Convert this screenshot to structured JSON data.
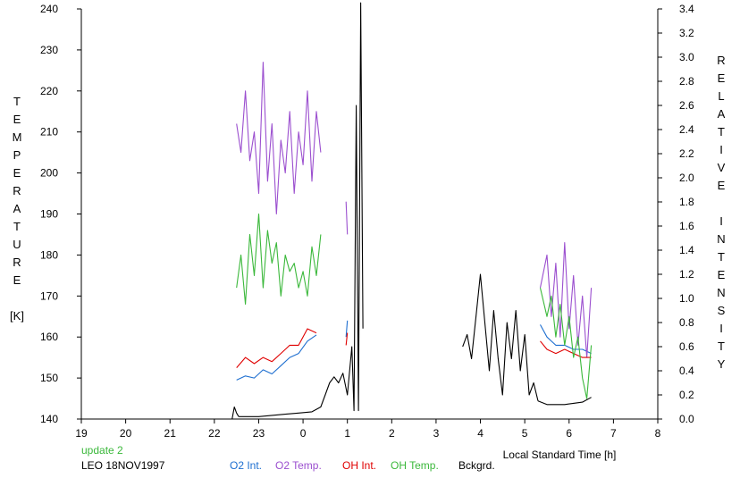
{
  "chart_data": {
    "type": "line",
    "left_axis_label": "TEMPERATURE",
    "left_axis_unit": "[K]",
    "right_axis_label": "RELATIVE INTENSITY",
    "x_axis_title": "Local Standard Time [h]",
    "x_ticks": [
      "19",
      "20",
      "21",
      "22",
      "23",
      "0",
      "1",
      "2",
      "3",
      "4",
      "5",
      "6",
      "7",
      "8"
    ],
    "y_left_ticks": [
      140,
      150,
      160,
      170,
      180,
      190,
      200,
      210,
      220,
      230,
      240
    ],
    "y_right_ticks": [
      "0.0",
      "0.2",
      "0.4",
      "0.6",
      "0.8",
      "1.0",
      "1.2",
      "1.4",
      "1.6",
      "1.8",
      "2.0",
      "2.2",
      "2.4",
      "2.6",
      "2.8",
      "3.0",
      "3.2",
      "3.4"
    ],
    "xlim": [
      19,
      32
    ],
    "ylim_left": [
      140,
      240
    ],
    "ylim_right": [
      0,
      3.4
    ],
    "grid": false,
    "series": [
      {
        "name": "O2 Int.",
        "axis": "left",
        "color": "#1e6fd0",
        "segments": [
          {
            "x": [
              22.5,
              22.7,
              22.9,
              23.1,
              23.3,
              23.5,
              23.7,
              23.9,
              24.1,
              24.3
            ],
            "y": [
              149.5,
              150.5,
              150,
              152,
              151,
              153,
              155,
              156,
              159,
              160.5
            ]
          },
          {
            "x": [
              24.97,
              25.0
            ],
            "y": [
              160,
              164
            ]
          },
          {
            "x": [
              29.35,
              29.5,
              29.7,
              29.9,
              30.1,
              30.3,
              30.5
            ],
            "y": [
              163,
              160,
              158,
              158,
              157,
              157,
              156
            ]
          }
        ]
      },
      {
        "name": "O2 Temp.",
        "axis": "left",
        "color": "#9b4fcf",
        "segments": [
          {
            "x": [
              22.5,
              22.6,
              22.7,
              22.8,
              22.9,
              23.0,
              23.1,
              23.2,
              23.3,
              23.4,
              23.5,
              23.6,
              23.7,
              23.8,
              23.9,
              24.0,
              24.1,
              24.2,
              24.3,
              24.4
            ],
            "y": [
              212,
              205,
              220,
              203,
              210,
              195,
              227,
              198,
              212,
              190,
              208,
              200,
              215,
              195,
              210,
              202,
              220,
              198,
              215,
              205
            ]
          },
          {
            "x": [
              24.97,
              25.0
            ],
            "y": [
              193,
              185
            ]
          },
          {
            "x": [
              29.35,
              29.5,
              29.6,
              29.7,
              29.8,
              29.9,
              30.0,
              30.1,
              30.2,
              30.3,
              30.4,
              30.5
            ],
            "y": [
              172,
              180,
              165,
              178,
              160,
              183,
              162,
              175,
              158,
              170,
              155,
              172
            ]
          }
        ]
      },
      {
        "name": "OH Int.",
        "axis": "left",
        "color": "#e00000",
        "segments": [
          {
            "x": [
              22.5,
              22.7,
              22.9,
              23.1,
              23.3,
              23.5,
              23.7,
              23.9,
              24.1,
              24.3
            ],
            "y": [
              152.5,
              155,
              153.5,
              155,
              154,
              156,
              158,
              158,
              162,
              161
            ]
          },
          {
            "x": [
              24.97,
              25.0
            ],
            "y": [
              158,
              161
            ]
          },
          {
            "x": [
              29.35,
              29.5,
              29.7,
              29.9,
              30.1,
              30.3,
              30.5
            ],
            "y": [
              159,
              157,
              156,
              157,
              156,
              155,
              155
            ]
          }
        ]
      },
      {
        "name": "OH Temp.",
        "axis": "left",
        "color": "#3bb83b",
        "segments": [
          {
            "x": [
              22.5,
              22.6,
              22.7,
              22.8,
              22.9,
              23.0,
              23.1,
              23.2,
              23.3,
              23.4,
              23.5,
              23.6,
              23.7,
              23.8,
              23.9,
              24.0,
              24.1,
              24.2,
              24.3,
              24.4
            ],
            "y": [
              172,
              180,
              168,
              185,
              175,
              190,
              172,
              186,
              178,
              183,
              170,
              180,
              176,
              178,
              172,
              176,
              170,
              182,
              175,
              185
            ]
          },
          {
            "x": [
              29.35,
              29.5,
              29.6,
              29.7,
              29.8,
              29.9,
              30.0,
              30.1,
              30.2,
              30.3,
              30.4,
              30.5
            ],
            "y": [
              172,
              165,
              170,
              160,
              168,
              158,
              165,
              155,
              160,
              150,
              145,
              158
            ]
          }
        ]
      },
      {
        "name": "Bckgrd.",
        "axis": "right",
        "color": "#000000",
        "segments": [
          {
            "x": [
              21.4,
              21.6,
              21.8,
              22.0,
              22.2,
              22.4,
              22.45,
              22.5,
              22.55
            ],
            "y": [
              0.0,
              0.0,
              0.0,
              0.0,
              0.0,
              0.0,
              0.1,
              0.05,
              0.02
            ]
          },
          {
            "x": [
              22.55,
              22.8,
              23.0,
              23.3,
              23.6,
              23.9,
              24.2,
              24.4,
              24.5,
              24.6,
              24.7,
              24.8,
              24.9,
              25.0,
              25.1,
              25.15,
              25.2,
              25.25,
              25.3,
              25.35
            ],
            "y": [
              0.02,
              0.02,
              0.02,
              0.03,
              0.04,
              0.05,
              0.06,
              0.1,
              0.2,
              0.3,
              0.35,
              0.3,
              0.38,
              0.2,
              0.6,
              0.07,
              2.6,
              0.07,
              3.45,
              0.75
            ]
          },
          {
            "x": [
              27.6,
              27.7,
              27.8,
              27.9,
              28.0,
              28.1,
              28.2,
              28.3,
              28.4,
              28.5,
              28.6,
              28.7,
              28.8,
              28.9,
              29.0,
              29.1,
              29.2,
              29.3
            ],
            "y": [
              0.6,
              0.7,
              0.5,
              0.85,
              1.2,
              0.8,
              0.4,
              0.9,
              0.5,
              0.2,
              0.8,
              0.5,
              0.9,
              0.4,
              0.7,
              0.2,
              0.3,
              0.15
            ]
          },
          {
            "x": [
              29.3,
              29.5,
              29.7,
              29.9,
              30.1,
              30.3,
              30.5
            ],
            "y": [
              0.15,
              0.12,
              0.12,
              0.12,
              0.13,
              0.14,
              0.18
            ]
          }
        ]
      }
    ],
    "legend": [
      "O2 Int.",
      "O2 Temp.",
      "OH Int.",
      "OH Temp.",
      "Bckgrd."
    ]
  },
  "footer": {
    "update_text": "update 2",
    "station_text": "LEO 18NOV1997"
  }
}
